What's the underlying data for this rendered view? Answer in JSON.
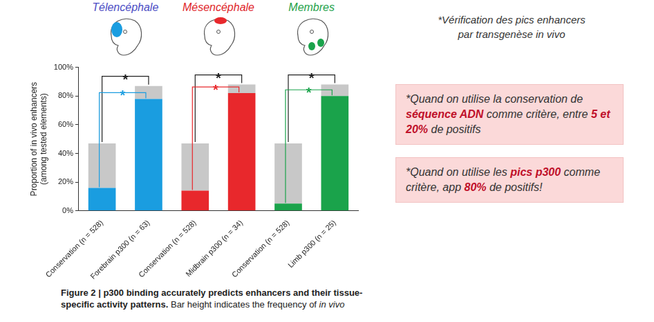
{
  "header": {
    "lines": [
      "*Vérification des pics enhancers",
      "par transgenèse in vivo"
    ]
  },
  "boxes": [
    {
      "runs": [
        {
          "text": "*Quand on utilise la conservation de "
        },
        {
          "text": "séquence ADN",
          "style": "bold"
        },
        {
          "text": " comme critère, entre "
        },
        {
          "text": "5 et 20%",
          "style": "bold"
        },
        {
          "text": " de positifs"
        }
      ]
    },
    {
      "runs": [
        {
          "text": "*Quand on utilise les "
        },
        {
          "text": "pics p300",
          "style": "bold"
        },
        {
          "text": " comme critère, app "
        },
        {
          "text": "80%",
          "style": "bold"
        },
        {
          "text": " de positifs!"
        }
      ]
    }
  ],
  "caption": {
    "runs": [
      {
        "text": "Figure 2 | p300 binding accurately predicts enhancers and their tissue-specific activity patterns.",
        "style": "bold"
      },
      {
        "text": " Bar height indicates the frequency of "
      },
      {
        "text": "in vivo",
        "style": "italic"
      }
    ]
  },
  "chart_data": {
    "type": "bar",
    "stacked": true,
    "grid": false,
    "categories": [
      "Conservation (n = 528)",
      "Forebrain p300 (n = 63)",
      "Conservation (n = 528)",
      "Midbrain p300 (n = 34)",
      "Conservation (n = 528)",
      "Limb p300 (n = 25)"
    ],
    "series": [
      {
        "colors": [
          "#1a9de0",
          "#1a9de0",
          "#e8282c",
          "#e8282c",
          "#1aa34b",
          "#1aa34b"
        ],
        "values": [
          16,
          78,
          14,
          82,
          5,
          80
        ]
      },
      {
        "color": "#c8c8c8",
        "values": [
          31,
          9,
          33,
          6,
          42,
          8
        ]
      }
    ],
    "y_label": [
      "Proportion of in vivo enhancers",
      "(among tested elements)"
    ],
    "ylim": [
      0,
      100
    ],
    "yticks": [
      {
        "value": 0,
        "label": "0%"
      },
      {
        "value": 20,
        "label": "20%"
      },
      {
        "value": 40,
        "label": "40%"
      },
      {
        "value": 60,
        "label": "60%"
      },
      {
        "value": 80,
        "label": "80%"
      },
      {
        "value": 100,
        "label": "100%"
      }
    ],
    "groups": [
      {
        "label": "Télencéphale",
        "color": "#4b4cc4",
        "annotations": [
          {
            "text": "*",
            "color": "#222222"
          },
          {
            "text": "*",
            "color": "#1a9de0"
          }
        ]
      },
      {
        "label": "Mésencéphale",
        "color": "#e0262b",
        "annotations": [
          {
            "text": "*",
            "color": "#222222"
          },
          {
            "text": "*",
            "color": "#e8282c"
          }
        ]
      },
      {
        "label": "Membres",
        "color": "#1fa24a",
        "annotations": [
          {
            "text": "*",
            "color": "#222222"
          },
          {
            "text": "*",
            "color": "#1aa34b"
          }
        ]
      }
    ]
  }
}
